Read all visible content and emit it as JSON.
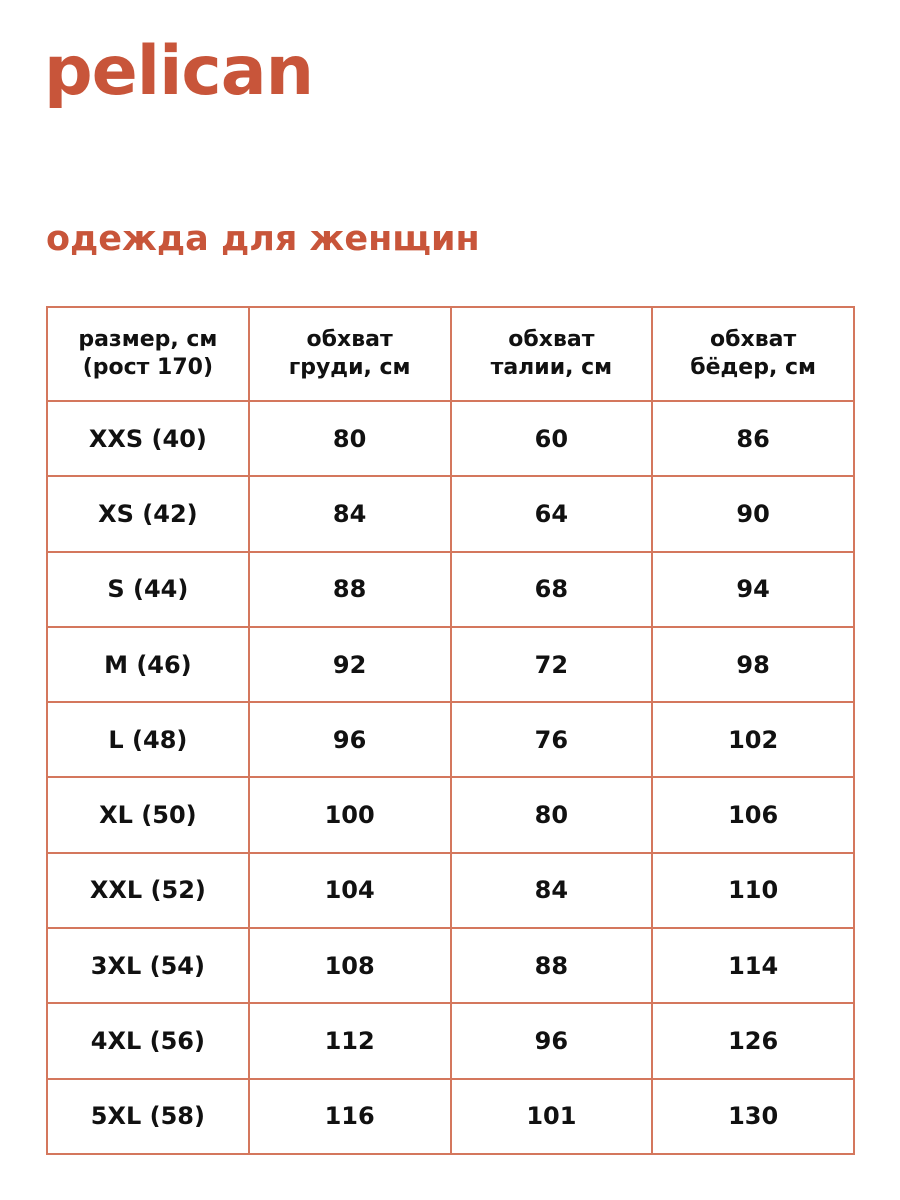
{
  "brand": {
    "logo_text": "pelican",
    "color": "#c8553a"
  },
  "title": "одежда для женщин",
  "table": {
    "border_color": "#d4775d",
    "headers": [
      [
        "размер, см",
        "(рост 170)"
      ],
      [
        "обхват",
        "груди, см"
      ],
      [
        "обхват",
        "талии, см"
      ],
      [
        "обхват",
        "бёдер, см"
      ]
    ],
    "rows": [
      [
        "XXS (40)",
        "80",
        "60",
        "86"
      ],
      [
        "XS (42)",
        "84",
        "64",
        "90"
      ],
      [
        "S (44)",
        "88",
        "68",
        "94"
      ],
      [
        "M (46)",
        "92",
        "72",
        "98"
      ],
      [
        "L (48)",
        "96",
        "76",
        "102"
      ],
      [
        "XL (50)",
        "100",
        "80",
        "106"
      ],
      [
        "XXL (52)",
        "104",
        "84",
        "110"
      ],
      [
        "3XL (54)",
        "108",
        "88",
        "114"
      ],
      [
        "4XL (56)",
        "112",
        "96",
        "126"
      ],
      [
        "5XL (58)",
        "116",
        "101",
        "130"
      ]
    ]
  }
}
